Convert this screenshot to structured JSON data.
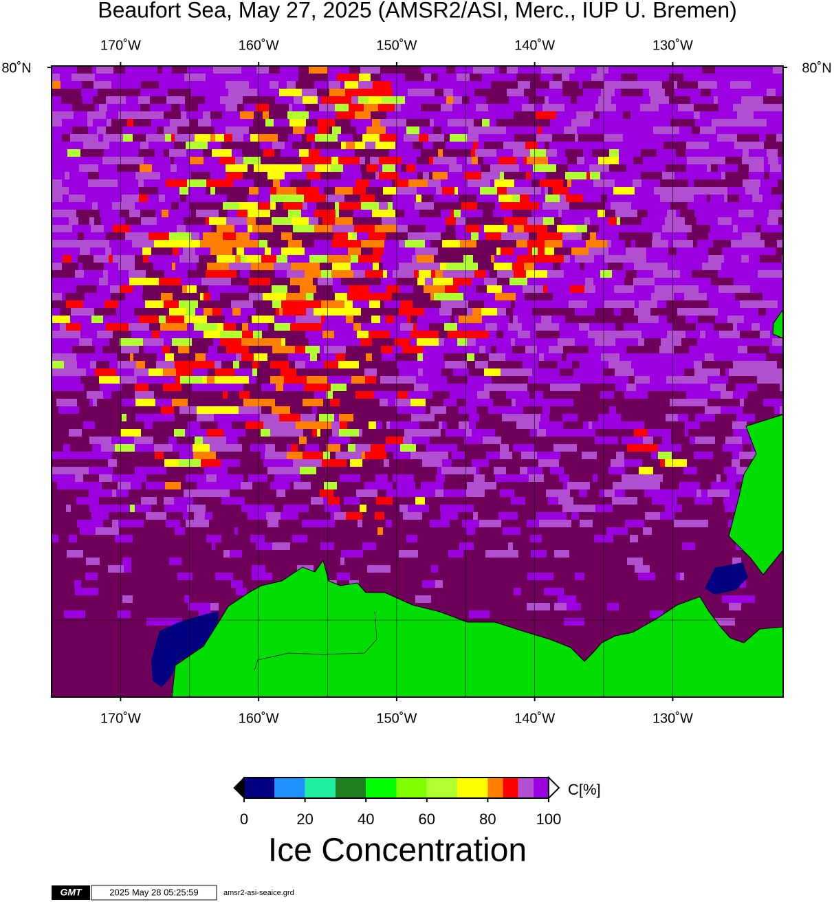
{
  "chart_data": {
    "type": "map",
    "title": "Beaufort Sea, May 27, 2025 (AMSR2/ASI, Merc., IUP U. Bremen)",
    "xlim": [
      -175,
      -122
    ],
    "xticks": [
      {
        "value": -170,
        "label": "170˚W"
      },
      {
        "value": -160,
        "label": "160˚W"
      },
      {
        "value": -150,
        "label": "150˚W"
      },
      {
        "value": -140,
        "label": "140˚W"
      },
      {
        "value": -130,
        "label": "130˚W"
      }
    ],
    "yticks": [
      {
        "value": 80,
        "label": "80˚N"
      }
    ],
    "colorbar": {
      "lim": [
        0,
        100
      ],
      "bounds": [
        0,
        10,
        20,
        30,
        40,
        50,
        60,
        70,
        80,
        85,
        90,
        95,
        100
      ],
      "colors": [
        "#000080",
        "#1e90ff",
        "#20f0a0",
        "#208020",
        "#00ff00",
        "#80ff00",
        "#b0ff30",
        "#ffff00",
        "#ff8000",
        "#ff0000",
        "#b050d0",
        "#9a00e0"
      ],
      "ticks": [
        0,
        20,
        40,
        60,
        80,
        100
      ],
      "unit": "C[%]",
      "title": "Ice Concentration"
    },
    "footer": {
      "logo": "GMT",
      "timestamp": "2025 May 28 05:25:59",
      "file": "amsr2-asi-seaice.grd"
    }
  }
}
